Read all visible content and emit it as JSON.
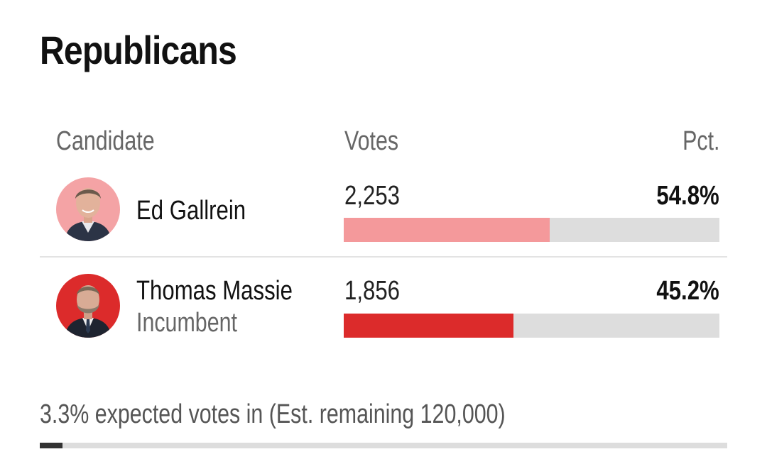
{
  "title": "Republicans",
  "columns": {
    "candidate": "Candidate",
    "votes": "Votes",
    "pct": "Pct."
  },
  "candidates": [
    {
      "name": "Ed Gallrein",
      "subtitle": "",
      "votes": "2,253",
      "pct": "54.8%",
      "share": 0.548,
      "bar_color": "#f4999b",
      "avatar_bg": "#f4a3a5"
    },
    {
      "name": "Thomas Massie",
      "subtitle": "Incumbent",
      "votes": "1,856",
      "pct": "45.2%",
      "share": 0.452,
      "bar_color": "#dc2b2b",
      "avatar_bg": "#dc2b2b"
    }
  ],
  "footer": {
    "text": "3.3% expected votes in (Est. remaining 120,000)",
    "progress": 0.033
  },
  "colors": {
    "track": "#dddddd",
    "progress": "#333333"
  }
}
